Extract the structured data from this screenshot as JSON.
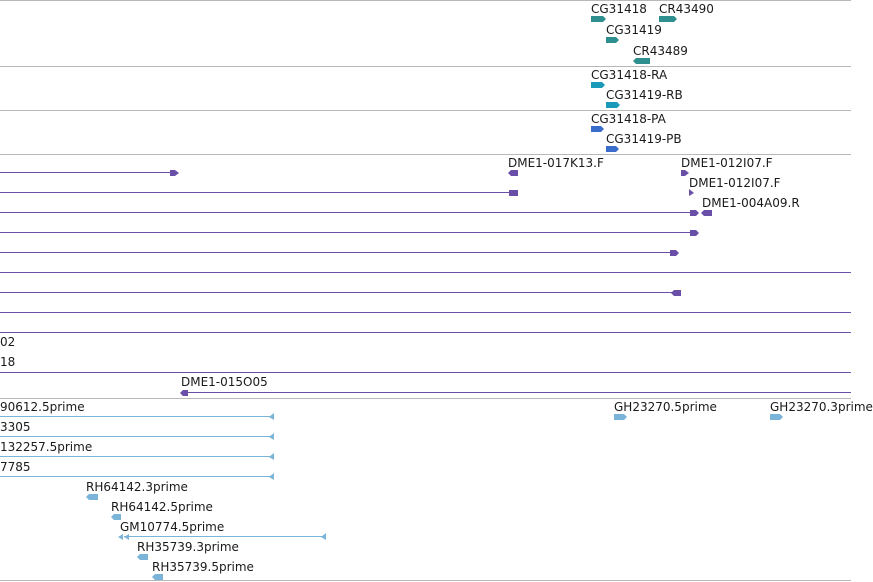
{
  "colors": {
    "gene": "#2f8f8f",
    "mrna": "#1a9ab8",
    "protein": "#3a6ccc",
    "clone": "#6a4fa8",
    "est": "#7ab4d8",
    "separator": "#b8b8b8"
  },
  "tracks": {
    "genes": {
      "features": [
        {
          "label": "CG31418"
        },
        {
          "label": "CR43490"
        },
        {
          "label": "CG31419"
        },
        {
          "label": "CR43489"
        }
      ]
    },
    "transcripts": {
      "features": [
        {
          "label": "CG31418-RA"
        },
        {
          "label": "CG31419-RB"
        }
      ]
    },
    "proteins": {
      "features": [
        {
          "label": "CG31418-PA"
        },
        {
          "label": "CG31419-PB"
        }
      ]
    },
    "bac_ends": {
      "features": [
        {
          "label": "DME1-017K13.F"
        },
        {
          "label": "DME1-012I07.F"
        },
        {
          "label": "DME1-012I07.F"
        },
        {
          "label": "DME1-004A09.R"
        },
        {
          "label": "02"
        },
        {
          "label": "18"
        },
        {
          "label": "DME1-015O05"
        }
      ]
    },
    "ests": {
      "features": [
        {
          "label": "90612.5prime"
        },
        {
          "label": "GH23270.5prime"
        },
        {
          "label": "GH23270.3prime"
        },
        {
          "label": "3305"
        },
        {
          "label": "132257.5prime"
        },
        {
          "label": "7785"
        },
        {
          "label": "RH64142.3prime"
        },
        {
          "label": "RH64142.5prime"
        },
        {
          "label": "GM10774.5prime"
        },
        {
          "label": "RH35739.3prime"
        },
        {
          "label": "RH35739.5prime"
        }
      ]
    }
  }
}
